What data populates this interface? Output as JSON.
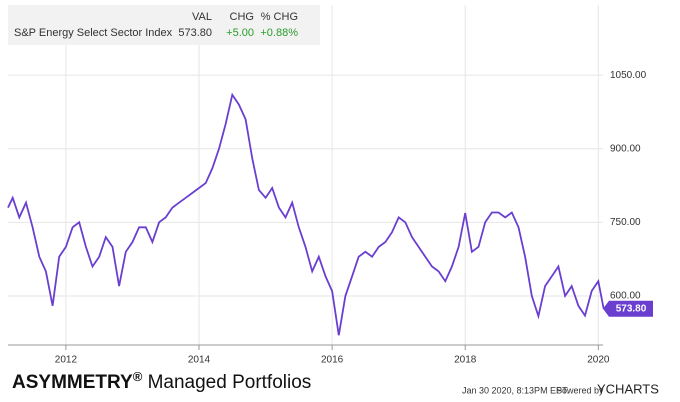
{
  "chart_data": {
    "type": "line",
    "quote": {
      "headers": [
        "VAL",
        "CHG",
        "% CHG"
      ],
      "name": "S&P Energy Select Sector Index",
      "val": "573.80",
      "chg": "+5.00",
      "pct": "+0.88%"
    },
    "end_label": "573.80",
    "x": [
      2011.13,
      2011.2,
      2011.3,
      2011.4,
      2011.5,
      2011.6,
      2011.7,
      2011.8,
      2011.9,
      2012.0,
      2012.1,
      2012.2,
      2012.3,
      2012.4,
      2012.5,
      2012.6,
      2012.7,
      2012.8,
      2012.9,
      2013.0,
      2013.1,
      2013.2,
      2013.3,
      2013.4,
      2013.5,
      2013.6,
      2013.7,
      2013.8,
      2013.9,
      2014.0,
      2014.1,
      2014.2,
      2014.3,
      2014.4,
      2014.5,
      2014.6,
      2014.7,
      2014.8,
      2014.9,
      2015.0,
      2015.1,
      2015.2,
      2015.3,
      2015.4,
      2015.5,
      2015.6,
      2015.7,
      2015.8,
      2015.9,
      2016.0,
      2016.1,
      2016.2,
      2016.3,
      2016.4,
      2016.5,
      2016.6,
      2016.7,
      2016.8,
      2016.9,
      2017.0,
      2017.1,
      2017.2,
      2017.3,
      2017.4,
      2017.5,
      2017.6,
      2017.7,
      2017.8,
      2017.9,
      2018.0,
      2018.1,
      2018.2,
      2018.3,
      2018.4,
      2018.5,
      2018.6,
      2018.7,
      2018.8,
      2018.9,
      2019.0,
      2019.1,
      2019.2,
      2019.3,
      2019.4,
      2019.5,
      2019.6,
      2019.7,
      2019.8,
      2019.9,
      2020.0,
      2020.08
    ],
    "series": [
      {
        "name": "S&P Energy Select Sector Index",
        "color": "#6a3fd0",
        "values": [
          780,
          800,
          760,
          790,
          740,
          680,
          650,
          580,
          680,
          700,
          740,
          750,
          700,
          660,
          680,
          720,
          700,
          620,
          690,
          710,
          740,
          740,
          710,
          750,
          760,
          780,
          790,
          800,
          810,
          820,
          830,
          860,
          900,
          950,
          1010,
          990,
          960,
          880,
          816,
          800,
          820,
          780,
          760,
          790,
          740,
          700,
          650,
          680,
          640,
          610,
          520,
          600,
          640,
          680,
          690,
          680,
          700,
          710,
          730,
          760,
          750,
          720,
          700,
          680,
          660,
          650,
          630,
          660,
          700,
          769,
          690,
          700,
          750,
          770,
          770,
          760,
          770,
          740,
          680,
          600,
          559,
          620,
          640,
          660,
          600,
          620,
          580,
          560,
          610,
          630,
          573.8
        ]
      }
    ],
    "xlim": [
      2011.13,
      2020.07
    ],
    "xticks": [
      2012,
      2014,
      2016,
      2018,
      2020
    ],
    "ylim": [
      500,
      1193
    ],
    "yticks": [
      {
        "value": 600,
        "label": "600.00"
      },
      {
        "value": 750,
        "label": "750.00"
      },
      {
        "value": 900,
        "label": "900.00"
      },
      {
        "value": 1050,
        "label": "1050.00"
      }
    ],
    "grid": true
  },
  "footer": {
    "brand": "ASYMMETRY",
    "reg": "®",
    "brand_rest": " Managed Portfolios",
    "timestamp": "Jan 30 2020, 8:13PM EST.",
    "powered": "Powered by",
    "ycharts": "YCHARTS"
  }
}
